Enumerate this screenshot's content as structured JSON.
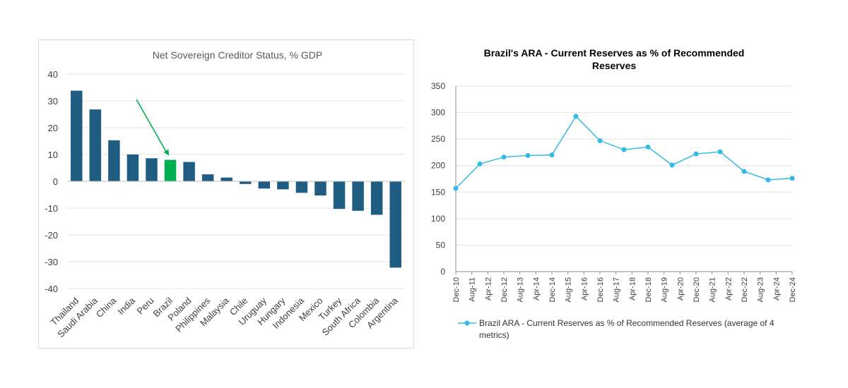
{
  "colors": {
    "bar": "#1f5c82",
    "highlight": "#00b050",
    "arrow": "#00b050",
    "line": "#33bbe6",
    "grid": "#e3e3e3",
    "axis_text": "#404040",
    "title_left": "#595959",
    "title_right": "#000000"
  },
  "chart_data": [
    {
      "type": "bar",
      "title": "Net Sovereign Creditor Status, % GDP",
      "categories": [
        "Thailand",
        "Saudi Arabia",
        "China",
        "India",
        "Peru",
        "Brazil",
        "Poland",
        "Philippines",
        "Malaysia",
        "Chile",
        "Uruguay",
        "Hungary",
        "Indonesia",
        "Mexico",
        "Turkey",
        "South Africa",
        "Colombia",
        "Argentina"
      ],
      "values": [
        33.8,
        26.8,
        15.3,
        10.0,
        8.6,
        8.0,
        7.2,
        2.6,
        1.4,
        -1.0,
        -2.7,
        -3.0,
        -4.3,
        -5.3,
        -10.3,
        -11.0,
        -12.5,
        -32.2
      ],
      "highlight": "Brazil",
      "ylim": [
        -40,
        40
      ],
      "yticks": [
        40,
        30,
        20,
        10,
        0,
        -10,
        -20,
        -30,
        -40
      ],
      "grid": true,
      "annotation": "arrow pointing to Brazil"
    },
    {
      "type": "line",
      "title": "Brazil's ARA - Current Reserves as % of Recommended Reserves",
      "categories": [
        "Dec-10",
        "Aug-11",
        "Apr-12",
        "Dec-12",
        "Aug-13",
        "Apr-14",
        "Dec-14",
        "Aug-15",
        "Apr-16",
        "Dec-16",
        "Aug-17",
        "Apr-18",
        "Dec-18",
        "Aug-19",
        "Apr-20",
        "Dec-20",
        "Aug-21",
        "Apr-22",
        "Dec-22",
        "Aug-23",
        "Apr-24",
        "Dec-24"
      ],
      "series": [
        {
          "name": "Brazil ARA - Current Reserves as % of Recommended Reserves (average of 4 metrics)",
          "points": [
            {
              "x": "Dec-10",
              "y": 157
            },
            {
              "x": "Aug-11",
              "y": 203
            },
            {
              "x": "Dec-12",
              "y": 216
            },
            {
              "x": "Aug-13",
              "y": 219
            },
            {
              "x": "Apr-14",
              "y": 220
            },
            {
              "x": "Aug-15",
              "y": 293
            },
            {
              "x": "Apr-16",
              "y": 247
            },
            {
              "x": "Dec-16",
              "y": 230
            },
            {
              "x": "Aug-17",
              "y": 235
            },
            {
              "x": "Dec-18",
              "y": 201
            },
            {
              "x": "Aug-19",
              "y": 222
            },
            {
              "x": "Apr-20",
              "y": 226
            },
            {
              "x": "Aug-21",
              "y": 189
            },
            {
              "x": "Apr-22",
              "y": 173
            },
            {
              "x": "Apr-24",
              "y": 176
            }
          ]
        }
      ],
      "ylim": [
        0,
        350
      ],
      "yticks": [
        0,
        50,
        100,
        150,
        200,
        250,
        300,
        350
      ],
      "grid": true,
      "legend": "bottom"
    }
  ]
}
